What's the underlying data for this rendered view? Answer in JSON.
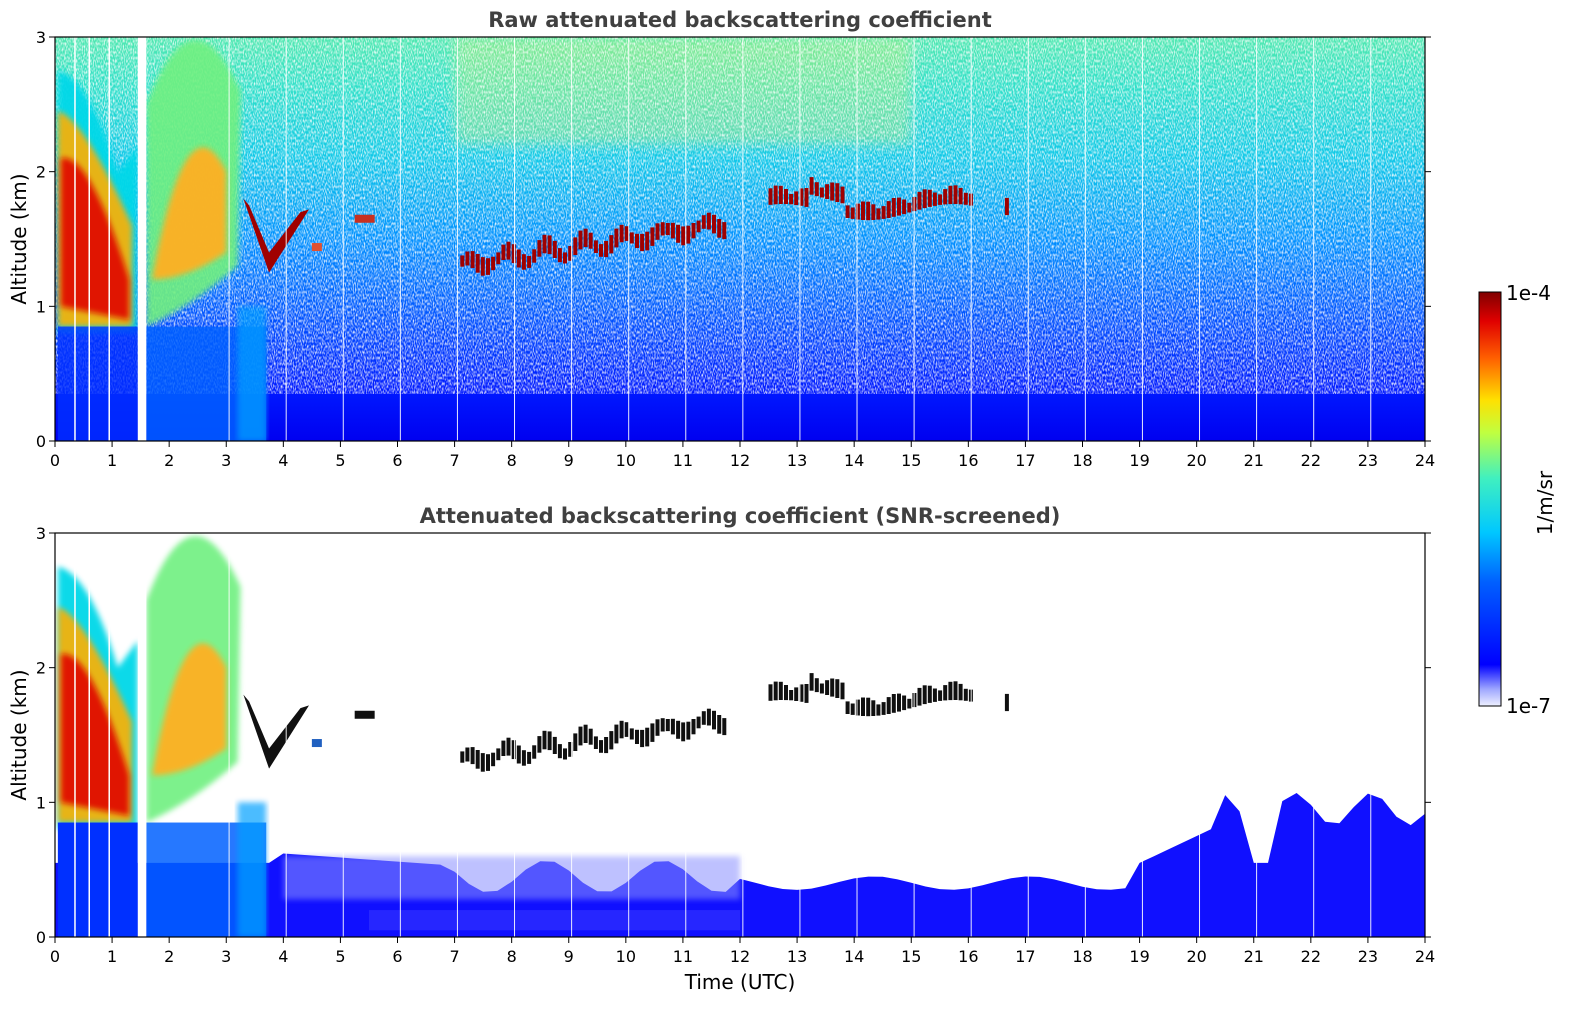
{
  "chart_data": [
    {
      "type": "heatmap",
      "title": "Raw attenuated backscattering coefficient",
      "xlabel": "",
      "ylabel": "Altitude (km)",
      "xlim": [
        0,
        24
      ],
      "ylim": [
        0,
        3
      ],
      "xticks": [
        "0",
        "1",
        "2",
        "3",
        "4",
        "5",
        "6",
        "7",
        "8",
        "9",
        "10",
        "11",
        "12",
        "13",
        "14",
        "15",
        "16",
        "17",
        "18",
        "19",
        "20",
        "21",
        "22",
        "23",
        "24"
      ],
      "yticks": [
        "0",
        "1",
        "2",
        "3"
      ],
      "screened": false,
      "features": [
        {
          "name": "aerosol-layer",
          "x_range": [
            0.05,
            1.45
          ],
          "alt_range": [
            0.85,
            2.3
          ],
          "peak": "red"
        },
        {
          "name": "aerosol-layer-2",
          "x_range": [
            1.6,
            3.2
          ],
          "alt_range": [
            0.9,
            3.0
          ],
          "peak": "orange"
        },
        {
          "name": "cloud-v",
          "x_range": [
            3.3,
            4.5
          ],
          "alt_range": [
            1.2,
            1.8
          ],
          "peak": "dark-red"
        },
        {
          "name": "cloud-layer-mid",
          "x_range": [
            7.1,
            11.7
          ],
          "alt_range": [
            1.2,
            1.65
          ],
          "peak": "dark-red"
        },
        {
          "name": "cloud-layer-high",
          "x_range": [
            12.5,
            16.7
          ],
          "alt_range": [
            1.65,
            1.95
          ],
          "peak": "dark-red"
        }
      ]
    },
    {
      "type": "heatmap",
      "title": "Attenuated backscattering coefficient (SNR-screened)",
      "xlabel": "Time (UTC)",
      "ylabel": "Altitude (km)",
      "xlim": [
        0,
        24
      ],
      "ylim": [
        0,
        3
      ],
      "xticks": [
        "0",
        "1",
        "2",
        "3",
        "4",
        "5",
        "6",
        "7",
        "8",
        "9",
        "10",
        "11",
        "12",
        "13",
        "14",
        "15",
        "16",
        "17",
        "18",
        "19",
        "20",
        "21",
        "22",
        "23",
        "24"
      ],
      "yticks": [
        "0",
        "1",
        "2",
        "3"
      ],
      "screened": true
    }
  ],
  "colorbar": {
    "label": "1/m/sr",
    "max_label": "1e-4",
    "min_label": "1e-7",
    "scale": "log",
    "colormap": "jet"
  },
  "colors": {
    "low": "#0000ff",
    "mid": "#00d0ff",
    "high": "#ffff00",
    "max": "#800000"
  }
}
